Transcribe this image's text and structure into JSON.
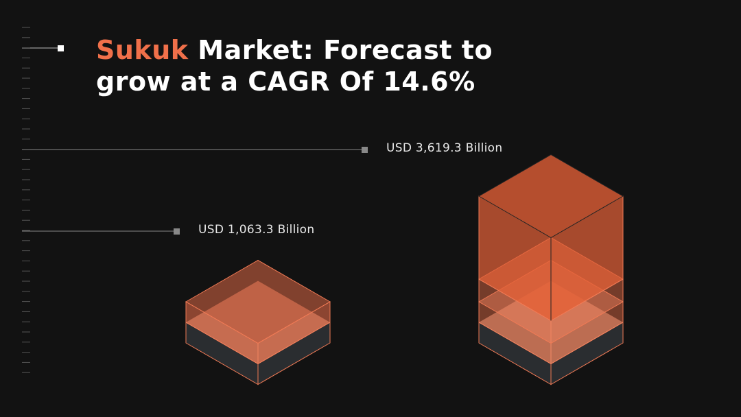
{
  "title": {
    "highlight": "Sukuk",
    "text": "Market: Forecast to grow at a CAGR Of 14.6%"
  },
  "labels": [
    "USD 3,619.3 Billion",
    "USD 1,063.3 Billion"
  ]
}
